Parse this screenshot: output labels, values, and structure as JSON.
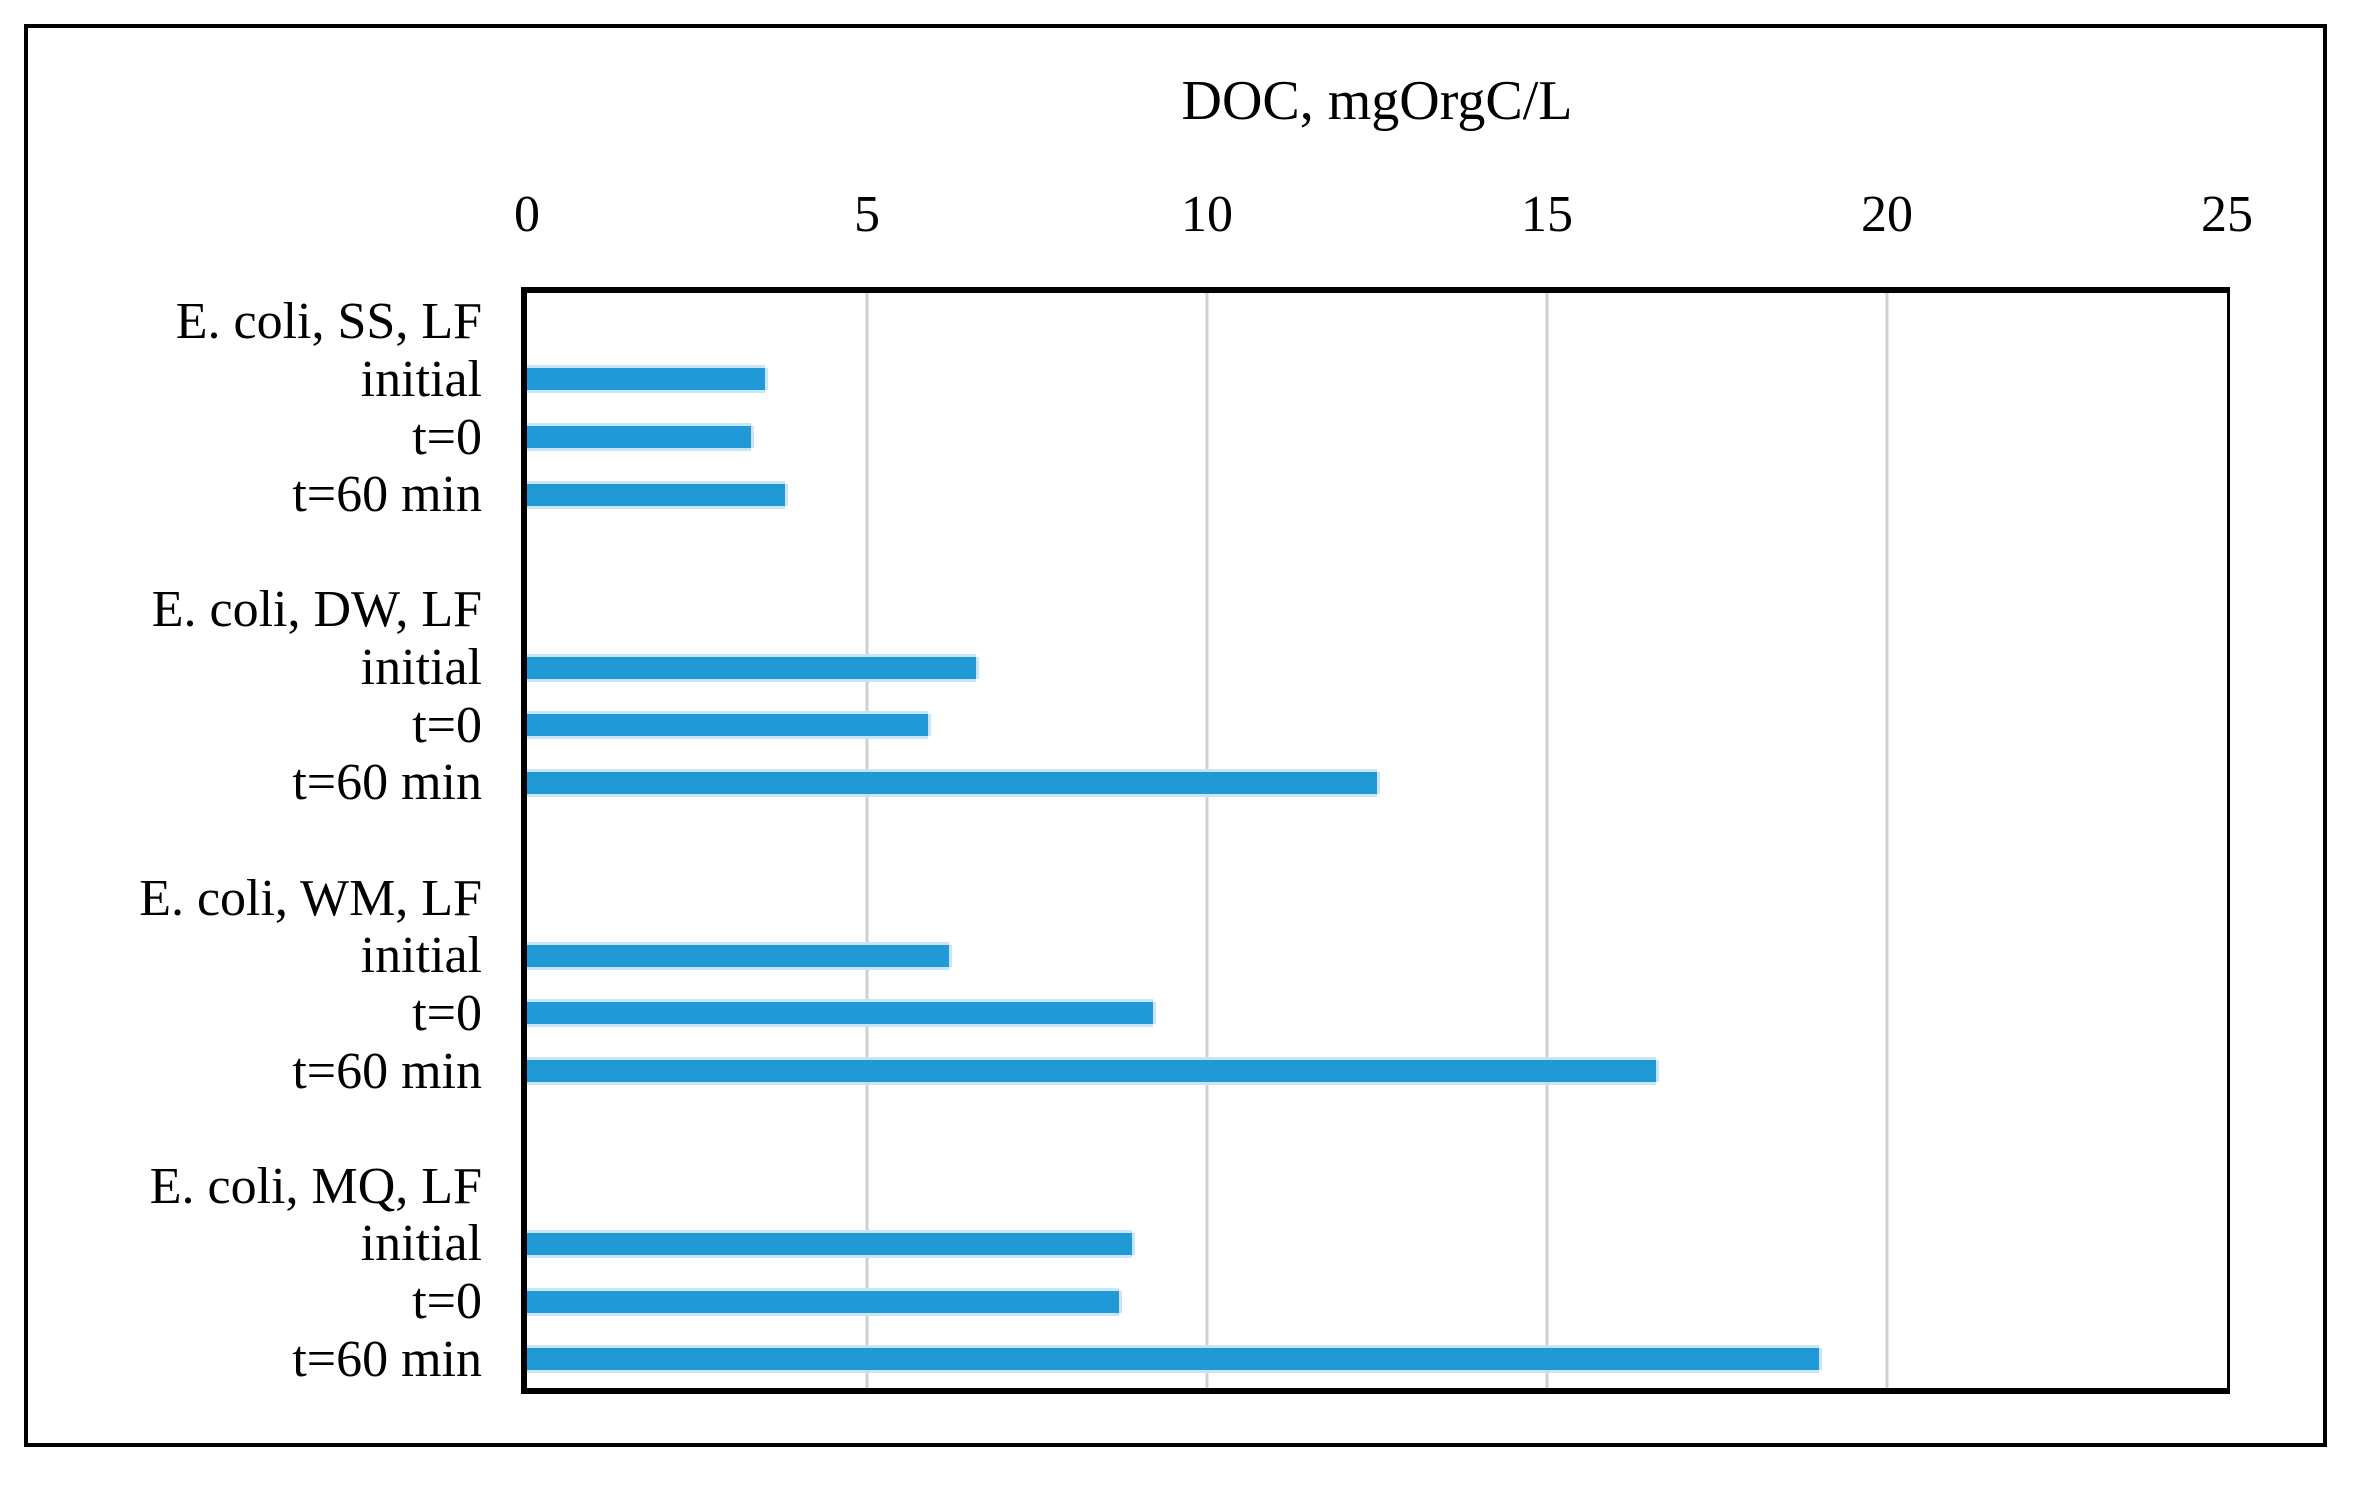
{
  "chart_data": {
    "type": "bar",
    "orientation": "horizontal",
    "title": "DOC, mgOrgC/L",
    "x_axis": {
      "min": 0,
      "max": 25,
      "ticks": [
        0,
        5,
        10,
        15,
        20,
        25
      ],
      "gridlines": [
        5,
        10,
        15,
        20
      ],
      "gridline_color": "#cdd1d4"
    },
    "bar_color": "#1f9ad7",
    "legend": "none",
    "groups": [
      {
        "label": "E. coli, SS, LF",
        "bars": [
          {
            "label": "initial",
            "value": 3.5
          },
          {
            "label": "t=0",
            "value": 3.3
          },
          {
            "label": "t=60 min",
            "value": 3.8
          }
        ]
      },
      {
        "label": "E. coli, DW, LF",
        "bars": [
          {
            "label": "initial",
            "value": 6.6
          },
          {
            "label": "t=0",
            "value": 5.9
          },
          {
            "label": "t=60 min",
            "value": 12.5
          }
        ]
      },
      {
        "label": "E. coli, WM, LF",
        "bars": [
          {
            "label": "initial",
            "value": 6.2
          },
          {
            "label": "t=0",
            "value": 9.2
          },
          {
            "label": "t=60 min",
            "value": 16.6
          }
        ]
      },
      {
        "label": "E. coli, MQ, LF",
        "bars": [
          {
            "label": "initial",
            "value": 8.9
          },
          {
            "label": "t=0",
            "value": 8.7
          },
          {
            "label": "t=60 min",
            "value": 19.0
          }
        ]
      }
    ]
  }
}
